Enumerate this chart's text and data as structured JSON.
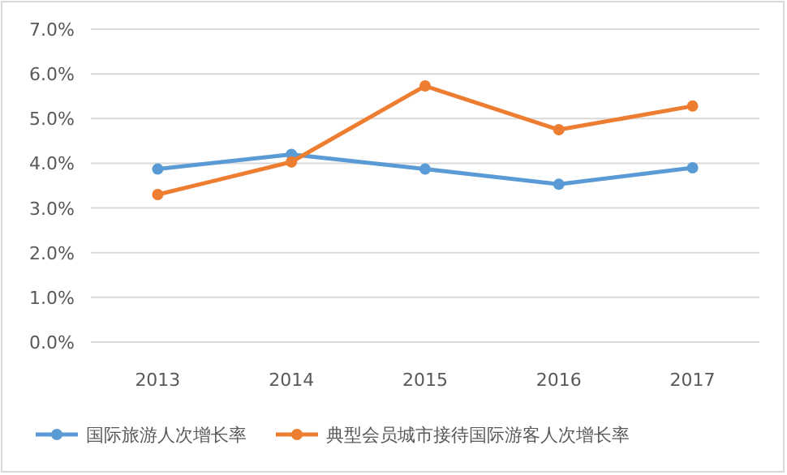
{
  "chart_data": {
    "type": "line",
    "categories": [
      "2013",
      "2014",
      "2015",
      "2016",
      "2017"
    ],
    "series": [
      {
        "name": "国际旅游人次增长率",
        "color": "#5b9bd5",
        "values": [
          3.87,
          4.2,
          3.87,
          3.53,
          3.9
        ]
      },
      {
        "name": "典型会员城市接待国际游客人次增长率",
        "color": "#ed7d31",
        "values": [
          3.3,
          4.03,
          5.73,
          4.75,
          5.28
        ]
      }
    ],
    "ylim": [
      0,
      7
    ],
    "yticks": [
      {
        "value": 0,
        "label": "0.0%"
      },
      {
        "value": 1,
        "label": "1.0%"
      },
      {
        "value": 2,
        "label": "2.0%"
      },
      {
        "value": 3,
        "label": "3.0%"
      },
      {
        "value": 4,
        "label": "4.0%"
      },
      {
        "value": 5,
        "label": "5.0%"
      },
      {
        "value": 6,
        "label": "6.0%"
      },
      {
        "value": 7,
        "label": "7.0%"
      }
    ],
    "grid": "y",
    "legend": "bottom",
    "marker": "circle"
  }
}
